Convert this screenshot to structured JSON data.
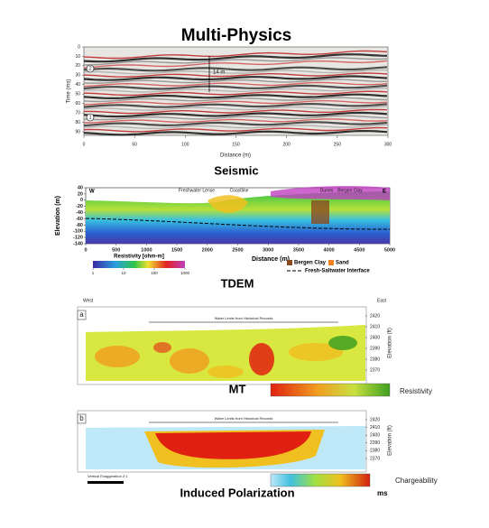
{
  "title": "Multi-Physics",
  "seismic": {
    "label": "Seismic",
    "y_axis": "Time (ms)",
    "x_axis": "Distance (m)",
    "yticks": [
      0,
      10,
      20,
      30,
      40,
      50,
      60,
      70,
      80,
      90
    ],
    "xticks": [
      0,
      50,
      100,
      150,
      200,
      250,
      300
    ],
    "annotation": "14 m",
    "markers": [
      "1",
      "2"
    ]
  },
  "tdem": {
    "label": "TDEM",
    "y_axis": "Elevation (m)",
    "x_axis": "Distance (m)",
    "west": "W",
    "east": "E",
    "yticks": [
      40,
      20,
      0,
      -20,
      -40,
      -60,
      -80,
      -100,
      -120,
      -140
    ],
    "xticks": [
      0,
      500,
      1000,
      1500,
      2000,
      2500,
      3000,
      3500,
      4000,
      4500,
      5000
    ],
    "annotations": [
      "Freshwater Lense",
      "Coastline",
      "Dunes",
      "Bergen Clay"
    ],
    "colorbar_label": "Resistivity [ohm-m]",
    "colorbar_ticks": [
      1,
      10,
      100,
      1000
    ],
    "legend": [
      "Bergen Clay",
      "Sand",
      "Fresh-Saltwater Interface"
    ]
  },
  "mt": {
    "label": "MT",
    "panel": "a",
    "west": "West",
    "east": "East",
    "note": "Water Limits from Historical Records",
    "yticks": [
      2420,
      2410,
      2400,
      2390,
      2380,
      2370
    ],
    "y_axis": "Elevation (ft)",
    "colorbar_label": "Resistivity"
  },
  "ip": {
    "label": "Induced Polarization",
    "panel": "b",
    "note": "Water Limits from Historical Records",
    "yticks": [
      2420,
      2410,
      2400,
      2390,
      2380,
      2370
    ],
    "y_axis": "Elevation (ft)",
    "scale_note": "Vertical Exaggeration 2:1",
    "colorbar_label": "Chargeability",
    "unit": "ms"
  }
}
